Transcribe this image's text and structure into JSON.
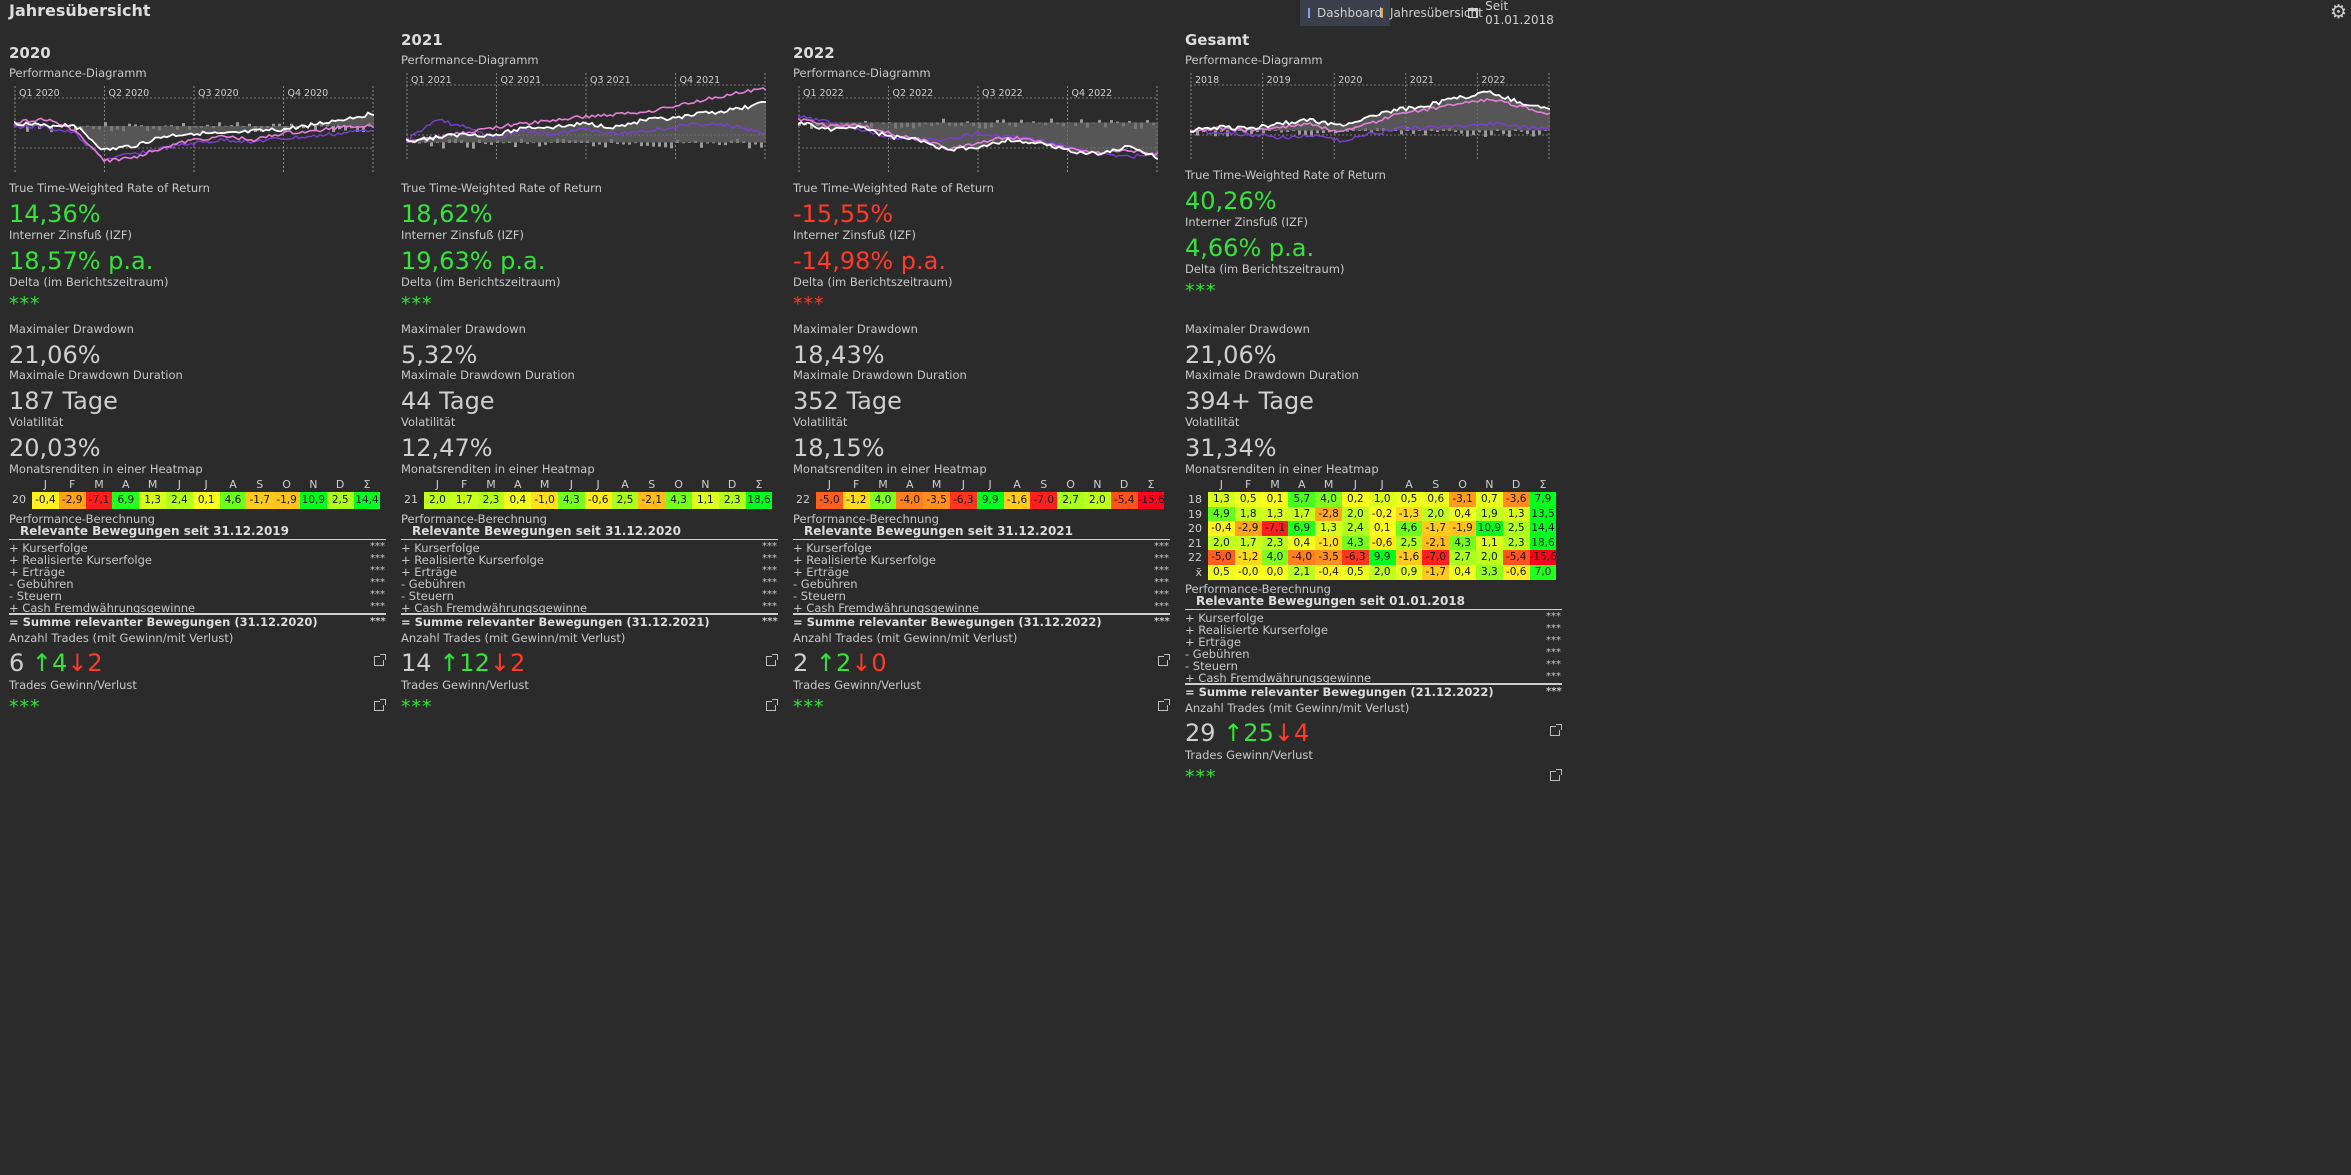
{
  "page_title": "Jahresübersicht",
  "toolbar": {
    "dashboard": "Dashboard",
    "overview": "Jahresübersicht",
    "since": "Seit 01.01.2018"
  },
  "colors": {
    "positive": "#35e33b",
    "negative": "#ff3a2a",
    "chart_main": "#ffffff",
    "chart_benchmark": "#e37fd6",
    "chart_other": "#7b3fd1"
  },
  "labels": {
    "perf_chart": "Performance-Diagramm",
    "ttwror": "True Time-Weighted Rate of Return",
    "irr": "Interner Zinsfuß (IZF)",
    "delta": "Delta (im Berichtszeitraum)",
    "max_dd": "Maximaler Drawdown",
    "max_dd_duration": "Maximale Drawdown Duration",
    "volatility": "Volatilität",
    "heatmap": "Monatsrenditen in einer Heatmap",
    "perf_calc": "Performance-Berechnung",
    "trades_count": "Anzahl Trades (mit Gewinn/mit Verlust)",
    "trades_pl": "Trades Gewinn/Verlust"
  },
  "months": [
    "J",
    "F",
    "M",
    "A",
    "M",
    "J",
    "J",
    "A",
    "S",
    "O",
    "N",
    "D",
    "Σ"
  ],
  "perf_rows": [
    "+ Kurserfolge",
    "+ Realisierte Kurserfolge",
    "+ Erträge",
    "-  Gebühren",
    "-  Steuern",
    "+ Cash Fremdwährungsgewinne"
  ],
  "masked": "***",
  "columns": [
    {
      "title": "2020",
      "quarters": [
        "Q1 2020",
        "Q2 2020",
        "Q3 2020",
        "Q4 2020"
      ],
      "ttwror": "14,36%",
      "irr": "18,57% p.a.",
      "delta": "***",
      "max_dd": "21,06%",
      "max_dd_duration": "187 Tage",
      "volatility": "20,03%",
      "heatmap": [
        {
          "year": "20",
          "values": [
            "-0,4",
            "-2,9",
            "-7,1",
            "6,9",
            "1,3",
            "2,4",
            "0,1",
            "4,6",
            "-1,7",
            "-1,9",
            "10,9",
            "2,5",
            "14,4"
          ]
        }
      ],
      "perf_subtitle": "Relevante Bewegungen seit 31.12.2019",
      "perf_sum": "= Summe relevanter Bewegungen (31.12.2020)",
      "trades_total": "6",
      "trades_win": "↑4",
      "trades_loss": "↓2",
      "trades_pl": "***"
    },
    {
      "title": "2021",
      "quarters": [
        "Q1 2021",
        "Q2 2021",
        "Q3 2021",
        "Q4 2021"
      ],
      "ttwror": "18,62%",
      "irr": "19,63% p.a.",
      "delta": "***",
      "max_dd": "5,32%",
      "max_dd_duration": "44 Tage",
      "volatility": "12,47%",
      "heatmap": [
        {
          "year": "21",
          "values": [
            "2,0",
            "1,7",
            "2,3",
            "0,4",
            "-1,0",
            "4,3",
            "-0,6",
            "2,5",
            "-2,1",
            "4,3",
            "1,1",
            "2,3",
            "18,6"
          ]
        }
      ],
      "perf_subtitle": "Relevante Bewegungen seit 31.12.2020",
      "perf_sum": "= Summe relevanter Bewegungen (31.12.2021)",
      "trades_total": "14",
      "trades_win": "↑12",
      "trades_loss": "↓2",
      "trades_pl": "***"
    },
    {
      "title": "2022",
      "quarters": [
        "Q1 2022",
        "Q2 2022",
        "Q3 2022",
        "Q4 2022"
      ],
      "ttwror": "-15,55%",
      "irr": "-14,98% p.a.",
      "delta": "***",
      "max_dd": "18,43%",
      "max_dd_duration": "352 Tage",
      "volatility": "18,15%",
      "heatmap": [
        {
          "year": "22",
          "values": [
            "-5,0",
            "-1,2",
            "4,0",
            "-4,0",
            "-3,5",
            "-6,3",
            "9,9",
            "-1,6",
            "-7,0",
            "2,7",
            "2,0",
            "-5,4",
            "-15,6"
          ]
        }
      ],
      "perf_subtitle": "Relevante Bewegungen seit 31.12.2021",
      "perf_sum": "= Summe relevanter Bewegungen (31.12.2022)",
      "trades_total": "2",
      "trades_win": "↑2",
      "trades_loss": "↓0",
      "trades_pl": "***"
    },
    {
      "title": "Gesamt",
      "quarters": [
        "2018",
        "2019",
        "2020",
        "2021",
        "2022"
      ],
      "ttwror": "40,26%",
      "irr": "4,66% p.a.",
      "delta": "***",
      "max_dd": "21,06%",
      "max_dd_duration": "394+ Tage",
      "volatility": "31,34%",
      "heatmap": [
        {
          "year": "18",
          "values": [
            "1,3",
            "0,5",
            "0,1",
            "5,7",
            "4,0",
            "0,2",
            "1,0",
            "0,5",
            "0,6",
            "-3,1",
            "0,7",
            "-3,6",
            "7,9"
          ]
        },
        {
          "year": "19",
          "values": [
            "4,9",
            "1,8",
            "1,3",
            "1,7",
            "-2,8",
            "2,0",
            "-0,2",
            "-1,3",
            "2,0",
            "0,4",
            "1,9",
            "1,3",
            "13,5"
          ]
        },
        {
          "year": "20",
          "values": [
            "-0,4",
            "-2,9",
            "-7,1",
            "6,9",
            "1,3",
            "2,4",
            "0,1",
            "4,6",
            "-1,7",
            "-1,9",
            "10,9",
            "2,5",
            "14,4"
          ]
        },
        {
          "year": "21",
          "values": [
            "2,0",
            "1,7",
            "2,3",
            "0,4",
            "-1,0",
            "4,3",
            "-0,6",
            "2,5",
            "-2,1",
            "4,3",
            "1,1",
            "2,3",
            "18,6"
          ]
        },
        {
          "year": "22",
          "values": [
            "-5,0",
            "-1,2",
            "4,0",
            "-4,0",
            "-3,5",
            "-6,3",
            "9,9",
            "-1,6",
            "-7,0",
            "2,7",
            "2,0",
            "-5,4",
            "-15,6"
          ]
        },
        {
          "year": "x̄",
          "values": [
            "0,5",
            "-0,0",
            "0,0",
            "2,1",
            "-0,4",
            "0,5",
            "2,0",
            "0,9",
            "-1,7",
            "0,4",
            "3,3",
            "-0,6",
            "7,0"
          ]
        }
      ],
      "perf_subtitle": "Relevante Bewegungen seit 01.01.2018",
      "perf_sum": "= Summe relevanter Bewegungen (21.12.2022)",
      "trades_total": "29",
      "trades_win": "↑25",
      "trades_loss": "↓4",
      "trades_pl": "***"
    }
  ]
}
